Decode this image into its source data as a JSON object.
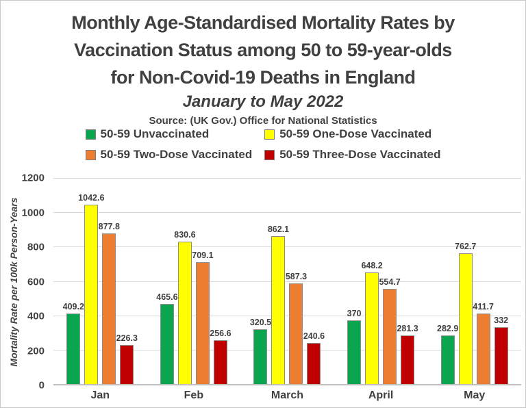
{
  "title": {
    "lines": [
      "Monthly Age-Standardised Mortality Rates by",
      "Vaccination Status among 50 to 59-year-olds",
      "for Non-Covid-19 Deaths in England"
    ],
    "subtitle": "January to May 2022",
    "source": "Source: (UK Gov.) Office for National Statistics"
  },
  "chart_data": {
    "type": "bar",
    "categories": [
      "Jan",
      "Feb",
      "March",
      "April",
      "May"
    ],
    "series": [
      {
        "name": "50-59 Unvaccinated",
        "color": "#0aa64f",
        "values": [
          409.2,
          465.6,
          320.5,
          370,
          282.9
        ]
      },
      {
        "name": "50-59 One-Dose Vaccinated",
        "color": "#ffff00",
        "values": [
          1042.6,
          830.6,
          862.1,
          648.2,
          762.7
        ]
      },
      {
        "name": "50-59 Two-Dose Vaccinated",
        "color": "#ed7d31",
        "values": [
          877.8,
          709.1,
          587.3,
          554.7,
          411.7
        ]
      },
      {
        "name": "50-59 Three-Dose Vaccinated",
        "color": "#c00000",
        "values": [
          226.3,
          256.6,
          240.6,
          281.3,
          332
        ]
      }
    ],
    "title": "Monthly Age-Standardised Mortality Rates by Vaccination Status among 50 to 59-year-olds for Non-Covid-19 Deaths in England",
    "subtitle": "January to May 2022",
    "xlabel": "",
    "ylabel": "Mortality Rate per 100k Person-Years",
    "ylim": [
      0,
      1200
    ],
    "yticks": [
      0,
      200,
      400,
      600,
      800,
      1000,
      1200
    ],
    "grid": true,
    "legend_position": "top",
    "bar_value_labels": true
  },
  "colors": {
    "text": "#404040",
    "gridline": "#d9d9d9",
    "axis_line": "#bfbfbf",
    "bar_border": "#8c8c8c",
    "canvas_border": "#c9c9c9"
  }
}
